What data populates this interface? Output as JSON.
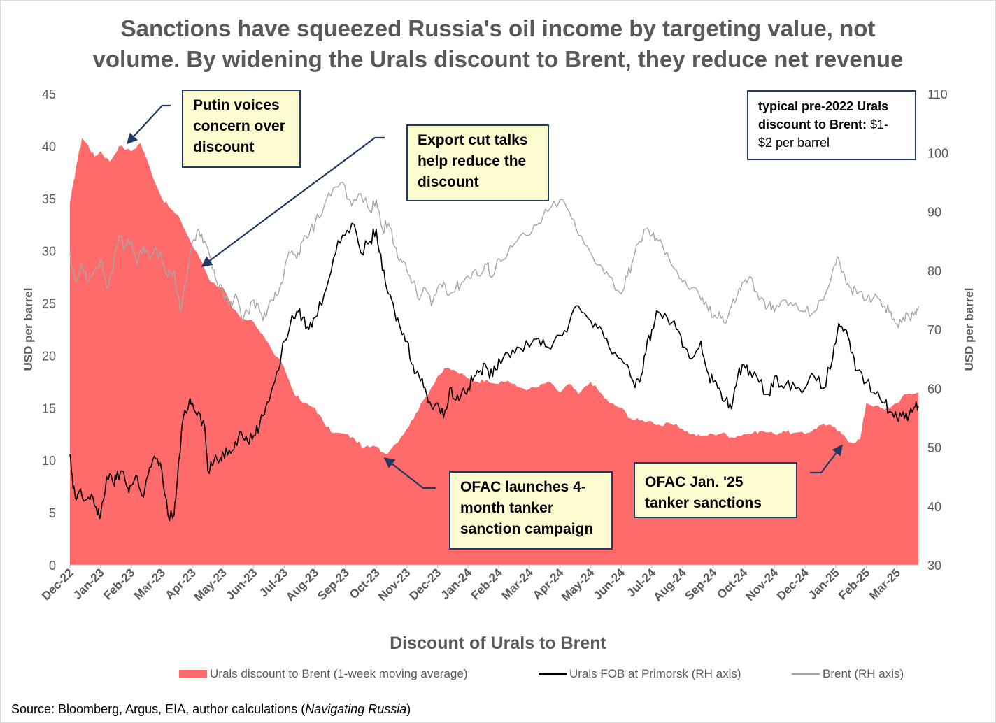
{
  "title": {
    "line1": "Sanctions have squeezed Russia's oil income by targeting value, not",
    "line2": "volume. By widening the Urals discount to Brent, they reduce net revenue"
  },
  "annotations": {
    "putin": [
      "Putin voices",
      "concern over",
      "discount"
    ],
    "export": [
      "Export cut talks",
      "help reduce the",
      "discount"
    ],
    "ofac_campaign": [
      "OFAC launches 4-",
      "month tanker",
      "sanction campaign"
    ],
    "ofac_jan25": [
      "OFAC Jan. '25",
      "tanker sanctions"
    ],
    "note_bold_1": "typical pre-2022 Urals",
    "note_bold_2": "discount to Brent:",
    "note_rest_1": " $1-",
    "note_rest_2": "$2 per barrel"
  },
  "legend": {
    "discount": "Urals discount to Brent (1-week moving average)",
    "urals": "Urals FOB at Primorsk (RH axis)",
    "brent": "Brent (RH axis)"
  },
  "source": {
    "text": "Source: Bloomberg, Argus, EIA, author calculations (",
    "italic": "Navigating Russia",
    "close": ")"
  },
  "colors": {
    "discount": "#ff6b6b",
    "urals": "#000000",
    "brent": "#a6a6a6",
    "axis_text": "#595959"
  },
  "chart_data": {
    "type": "area+line",
    "title": "Discount of Urals to Brent",
    "xlabel": "Discount of Urals to Brent",
    "ylabel_left": "USD per barrel",
    "ylabel_right": "USD per barrel",
    "ylim_left": [
      0,
      45
    ],
    "ylim_right": [
      30,
      110
    ],
    "yticks_left": [
      "0",
      "5",
      "10",
      "15",
      "20",
      "25",
      "30",
      "35",
      "40",
      "45"
    ],
    "yticks_right": [
      "30",
      "40",
      "50",
      "60",
      "70",
      "80",
      "90",
      "100",
      "110"
    ],
    "categories": [
      "Dec-22",
      "Jan-23",
      "Feb-23",
      "Mar-23",
      "Apr-23",
      "May-23",
      "Jun-23",
      "Jul-23",
      "Aug-23",
      "Sep-23",
      "Oct-23",
      "Nov-23",
      "Dec-23",
      "Jan-24",
      "Feb-24",
      "Mar-24",
      "Apr-24",
      "May-24",
      "Jun-24",
      "Jul-24",
      "Aug-24",
      "Sep-24",
      "Oct-24",
      "Nov-24",
      "Dec-24",
      "Jan-25",
      "Feb-25",
      "Mar-25"
    ],
    "x_end": 27.7,
    "series": [
      {
        "name": "Urals discount to Brent (1-week moving average)",
        "type": "area",
        "axis": "left",
        "x": [
          0,
          0.2,
          0.4,
          0.6,
          0.8,
          1.0,
          1.3,
          1.6,
          2.0,
          2.3,
          2.6,
          3.0,
          3.3,
          3.6,
          4.0,
          4.3,
          4.6,
          5.0,
          5.3,
          5.6,
          6.0,
          6.3,
          6.6,
          7.0,
          7.3,
          7.6,
          8.0,
          8.3,
          8.6,
          9.0,
          9.3,
          9.6,
          10.0,
          10.3,
          10.6,
          11.0,
          11.3,
          11.6,
          12.0,
          12.3,
          12.6,
          13.0,
          13.3,
          13.6,
          14.0,
          14.3,
          14.6,
          15.0,
          15.3,
          15.6,
          16.0,
          16.3,
          16.6,
          17.0,
          17.3,
          17.6,
          18.0,
          18.3,
          18.6,
          19.0,
          19.3,
          19.6,
          20.0,
          20.3,
          20.6,
          21.0,
          21.3,
          21.6,
          22.0,
          22.3,
          22.6,
          23.0,
          23.3,
          23.6,
          24.0,
          24.3,
          24.6,
          24.9,
          25.2,
          25.5,
          25.8,
          26.0,
          26.3,
          26.6,
          27.0,
          27.3,
          27.7
        ],
        "values": [
          34.5,
          38,
          40.8,
          40,
          39,
          39.5,
          38.5,
          40,
          39.5,
          40.3,
          38,
          35,
          34,
          33,
          30.5,
          29,
          27,
          26.5,
          24.5,
          23.5,
          23.2,
          22,
          20.5,
          18.8,
          16.5,
          15.5,
          15,
          13.5,
          12.6,
          12.5,
          12,
          11.2,
          11.3,
          10.6,
          11.5,
          13,
          14.5,
          16,
          18,
          18.8,
          18.5,
          17.8,
          17.5,
          17.7,
          17.3,
          17.6,
          17,
          16.8,
          17,
          17.5,
          16.5,
          17.3,
          16.3,
          17.5,
          16.5,
          15.5,
          15,
          14,
          13.8,
          13.7,
          13.3,
          13.5,
          13,
          12.5,
          12.3,
          12.5,
          12.6,
          12.2,
          12.5,
          12.6,
          12.8,
          12.5,
          12.8,
          12.6,
          12.5,
          13,
          13.5,
          13.2,
          12.5,
          11.7,
          12,
          15.5,
          15.2,
          14.8,
          15.5,
          16.3,
          16.5
        ]
      },
      {
        "name": "Urals FOB at Primorsk (RH axis)",
        "type": "line",
        "axis": "right",
        "x": [
          0,
          0.1,
          0.2,
          0.3,
          0.5,
          0.7,
          0.9,
          1.0,
          1.2,
          1.4,
          1.5,
          1.7,
          1.9,
          2.0,
          2.2,
          2.4,
          2.6,
          2.8,
          3.0,
          3.2,
          3.4,
          3.5,
          3.7,
          3.9,
          4.0,
          4.2,
          4.4,
          4.5,
          4.7,
          4.9,
          5.0,
          5.2,
          5.4,
          5.6,
          5.8,
          6.0,
          6.2,
          6.4,
          6.6,
          6.8,
          7.0,
          7.2,
          7.4,
          7.6,
          7.8,
          8.0,
          8.3,
          8.6,
          8.9,
          9.2,
          9.5,
          9.8,
          10.0,
          10.2,
          10.4,
          10.6,
          10.8,
          11.0,
          11.2,
          11.4,
          11.6,
          11.8,
          12.0,
          12.2,
          12.4,
          12.6,
          12.8,
          13.0,
          13.2,
          13.4,
          13.6,
          13.8,
          14.0,
          14.3,
          14.6,
          15.0,
          15.3,
          15.6,
          16.0,
          16.3,
          16.6,
          17.0,
          17.3,
          17.6,
          18.0,
          18.2,
          18.4,
          18.6,
          18.8,
          19.0,
          19.2,
          19.5,
          19.8,
          20.0,
          20.3,
          20.6,
          20.8,
          21.0,
          21.2,
          21.4,
          21.6,
          21.8,
          22.0,
          22.2,
          22.5,
          22.8,
          23.0,
          23.3,
          23.6,
          24.0,
          24.3,
          24.6,
          24.9,
          25.1,
          25.3,
          25.5,
          25.7,
          26.0,
          26.3,
          26.6,
          26.8,
          27.0,
          27.2,
          27.4,
          27.6,
          27.7
        ],
        "values": [
          48.8,
          43,
          41,
          42.5,
          41,
          42,
          38.5,
          38.5,
          45,
          44,
          44.5,
          46,
          43,
          43.5,
          45,
          41.5,
          46.5,
          48,
          46,
          38.5,
          38.5,
          44,
          55,
          58,
          57.5,
          56,
          53.5,
          46,
          47.5,
          48,
          49,
          49.5,
          51,
          52.5,
          51,
          52,
          54,
          57,
          60,
          63,
          68,
          71,
          73,
          72,
          70,
          72,
          76,
          82,
          86,
          88,
          83,
          85,
          87,
          80,
          76,
          73,
          70,
          68,
          64,
          62,
          60,
          57,
          57.5,
          55,
          60,
          58,
          59.5,
          60,
          62,
          63,
          63.5,
          62,
          65,
          66,
          67,
          67,
          68.5,
          67,
          69,
          71,
          74,
          71.5,
          70.5,
          67,
          65,
          64,
          61,
          61,
          66,
          70,
          73,
          72,
          70,
          67,
          65,
          68,
          63,
          61,
          60,
          58,
          56.5,
          62,
          64,
          63,
          61,
          59,
          62,
          60,
          61,
          60,
          62,
          60,
          65,
          71,
          70,
          66,
          63,
          61,
          59,
          57.5,
          56,
          55,
          56,
          55.5,
          57,
          57
        ]
      },
      {
        "name": "Brent (RH axis)",
        "type": "line",
        "axis": "right",
        "x": [
          0,
          0.2,
          0.4,
          0.6,
          0.8,
          1.0,
          1.2,
          1.4,
          1.6,
          1.8,
          2.0,
          2.2,
          2.4,
          2.6,
          2.8,
          3.0,
          3.2,
          3.4,
          3.6,
          3.8,
          4.0,
          4.2,
          4.4,
          4.6,
          4.8,
          5.0,
          5.2,
          5.4,
          5.6,
          5.8,
          6.0,
          6.2,
          6.4,
          6.6,
          6.8,
          7.0,
          7.2,
          7.4,
          7.6,
          7.8,
          8.0,
          8.3,
          8.6,
          8.9,
          9.2,
          9.5,
          9.8,
          10.0,
          10.2,
          10.4,
          10.6,
          10.8,
          11.0,
          11.2,
          11.4,
          11.6,
          11.8,
          12.0,
          12.2,
          12.4,
          12.6,
          12.8,
          13.0,
          13.2,
          13.4,
          13.6,
          13.8,
          14.0,
          14.3,
          14.6,
          15.0,
          15.3,
          15.6,
          16.0,
          16.3,
          16.6,
          17.0,
          17.3,
          17.6,
          18.0,
          18.2,
          18.4,
          18.6,
          18.8,
          19.0,
          19.2,
          19.5,
          19.8,
          20.0,
          20.3,
          20.6,
          20.8,
          21.0,
          21.2,
          21.4,
          21.6,
          21.8,
          22.0,
          22.2,
          22.5,
          22.8,
          23.0,
          23.3,
          23.6,
          24.0,
          24.3,
          24.6,
          24.9,
          25.1,
          25.3,
          25.5,
          25.7,
          26.0,
          26.3,
          26.6,
          26.8,
          27.0,
          27.2,
          27.4,
          27.6,
          27.7
        ],
        "values": [
          83,
          78,
          81,
          78,
          80,
          82,
          77,
          80,
          86,
          84,
          85,
          81,
          84,
          82,
          84,
          82,
          79,
          80,
          73,
          78,
          85,
          87,
          85,
          82,
          78,
          76,
          74,
          76,
          72,
          73,
          75,
          73,
          72,
          75,
          76,
          80,
          83,
          82,
          85,
          86,
          88,
          91,
          94,
          95,
          91,
          93,
          90,
          92,
          87,
          88,
          84,
          82,
          80,
          78,
          75,
          77,
          74,
          77,
          78,
          76,
          77,
          78,
          79,
          80,
          79,
          81,
          79,
          82,
          83,
          85,
          86,
          88,
          90,
          92,
          90,
          86,
          83,
          81,
          79,
          76,
          79,
          82,
          85,
          87,
          86,
          85,
          83,
          80,
          78,
          77,
          75,
          74,
          72,
          73,
          71,
          74,
          76,
          78,
          79,
          75,
          74,
          73,
          75,
          74,
          73,
          73,
          75,
          80,
          82,
          79,
          77,
          76,
          75,
          76,
          74,
          73,
          71,
          72,
          72,
          73,
          74
        ]
      }
    ],
    "legend_position": "bottom"
  }
}
